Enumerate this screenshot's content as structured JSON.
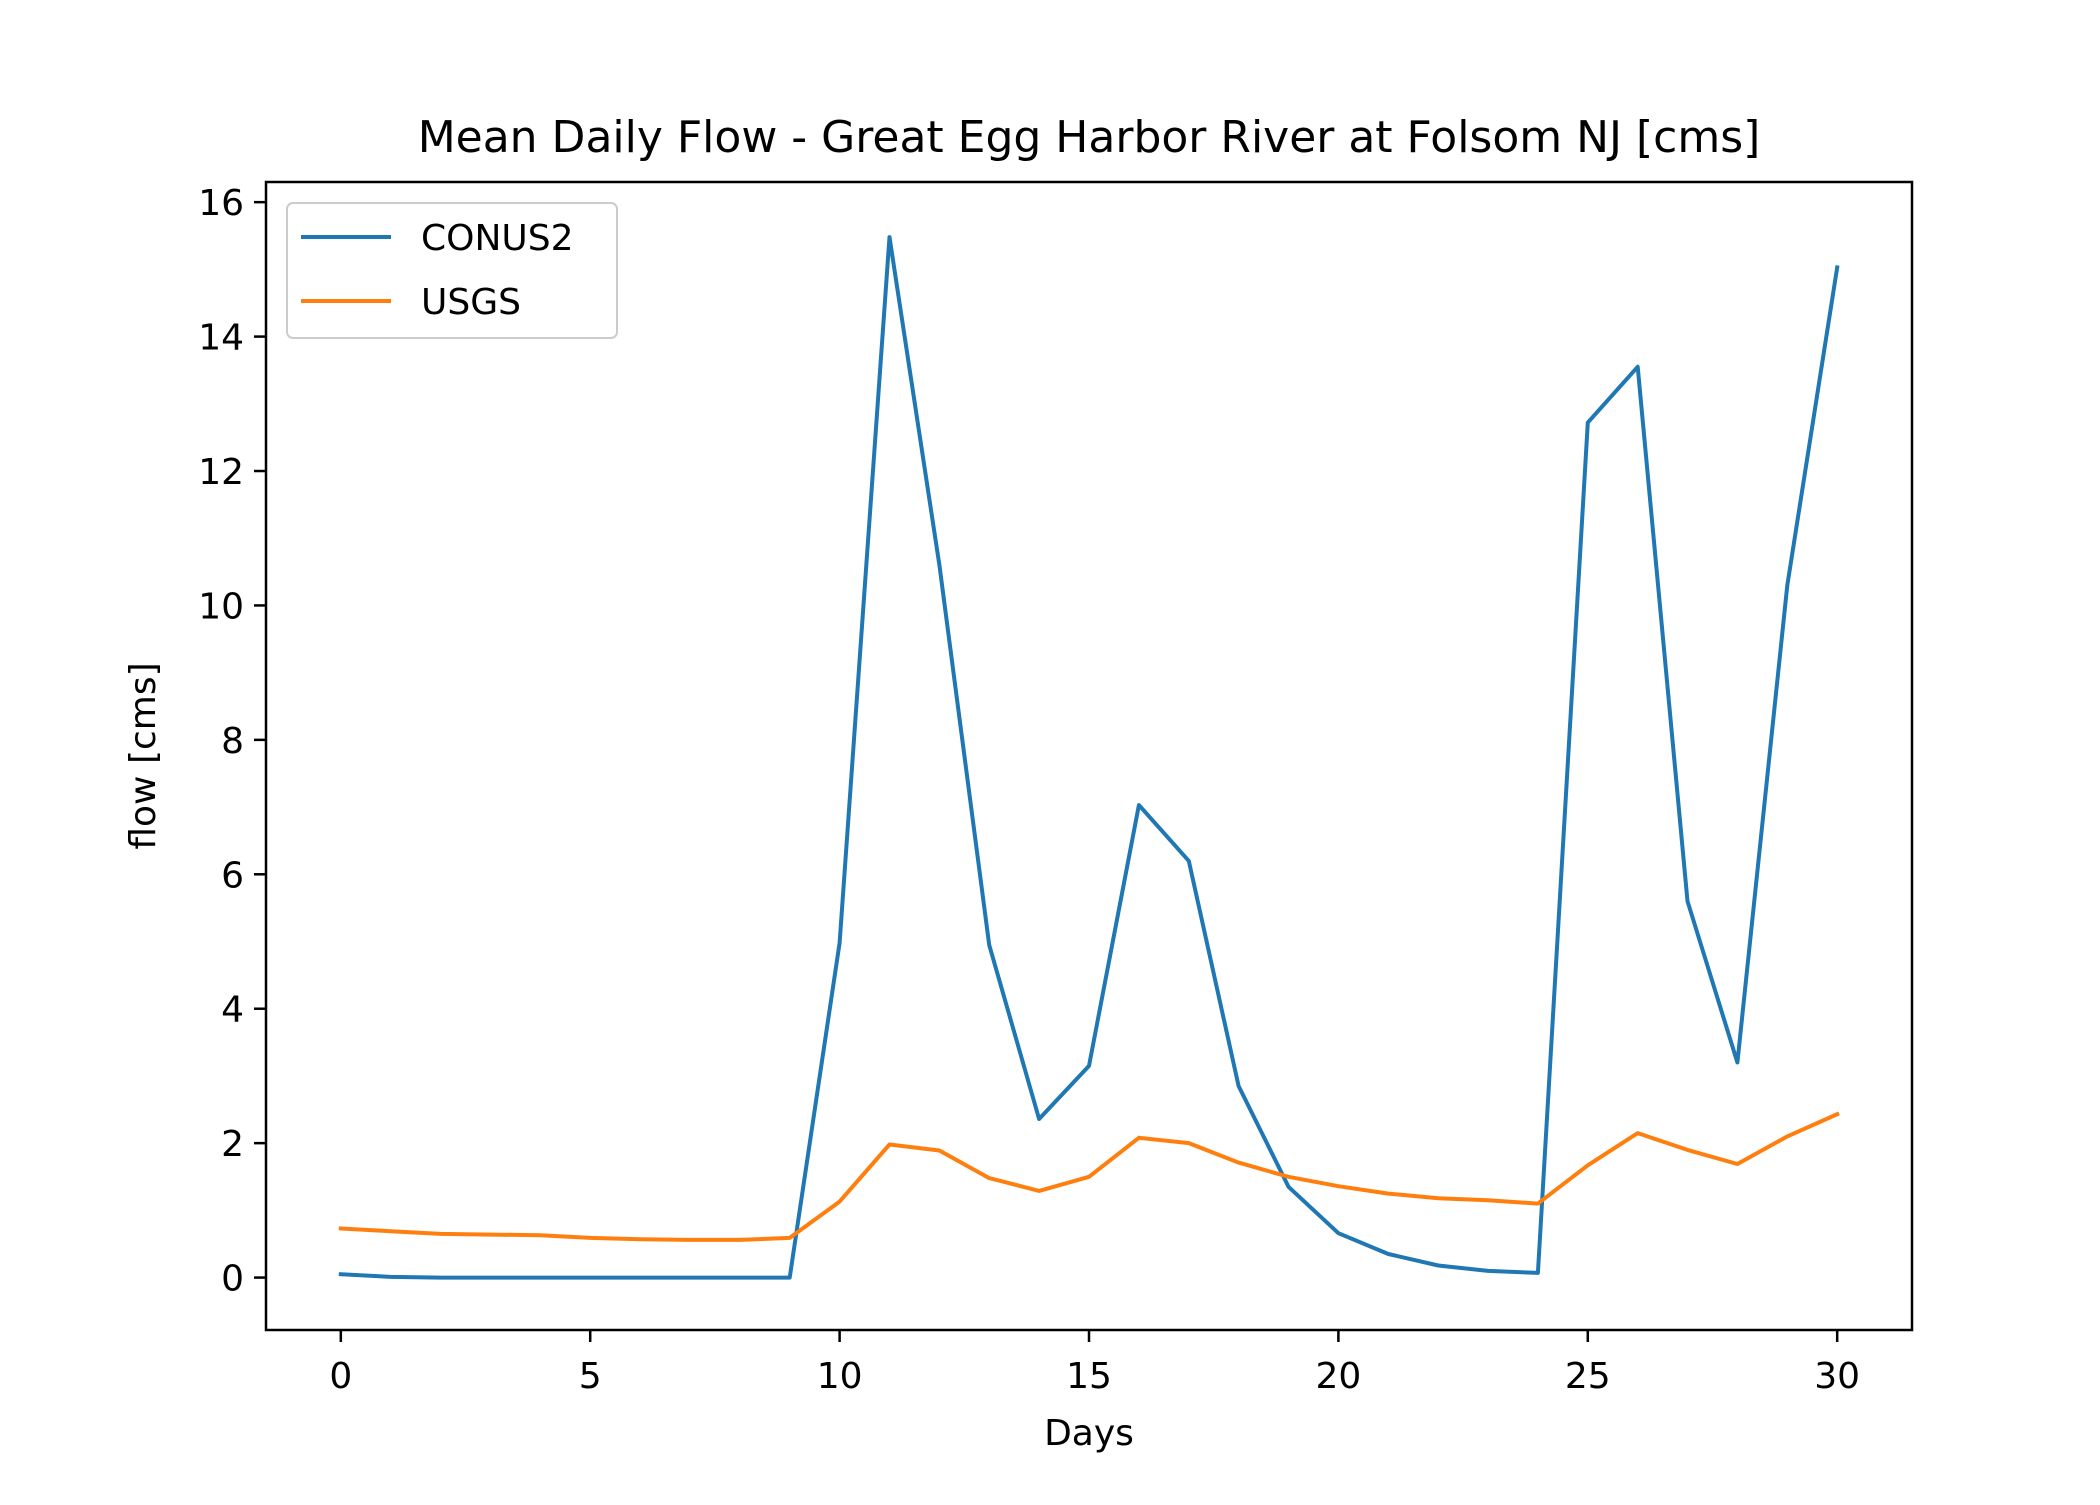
{
  "chart_data": {
    "type": "line",
    "title": "Mean Daily Flow - Great Egg Harbor River at Folsom NJ [cms]",
    "xlabel": "Days",
    "ylabel": "flow [cms]",
    "xlim": [
      -1.5,
      31.5
    ],
    "ylim": [
      -0.78,
      16.3
    ],
    "xticks": [
      0,
      5,
      10,
      15,
      20,
      25,
      30
    ],
    "yticks": [
      0,
      2,
      4,
      6,
      8,
      10,
      12,
      14,
      16
    ],
    "grid": false,
    "legend_position": "upper left",
    "x": [
      0,
      1,
      2,
      3,
      4,
      5,
      6,
      7,
      8,
      9,
      10,
      11,
      12,
      13,
      14,
      15,
      16,
      17,
      18,
      19,
      20,
      21,
      22,
      23,
      24,
      25,
      26,
      27,
      28,
      29,
      30
    ],
    "series": [
      {
        "name": "CONUS2",
        "color": "#1f77b4",
        "values": [
          0.05,
          0.01,
          0.0,
          0.0,
          0.0,
          0.0,
          0.0,
          0.0,
          0.0,
          0.0,
          4.98,
          15.48,
          10.6,
          4.95,
          2.36,
          3.15,
          7.03,
          6.2,
          2.85,
          1.35,
          0.66,
          0.35,
          0.18,
          0.1,
          0.07,
          12.72,
          13.55,
          5.6,
          3.2,
          10.3,
          15.03
        ]
      },
      {
        "name": "USGS",
        "color": "#ff7f0e",
        "values": [
          0.73,
          0.69,
          0.65,
          0.64,
          0.63,
          0.59,
          0.57,
          0.56,
          0.56,
          0.59,
          1.13,
          1.98,
          1.89,
          1.48,
          1.29,
          1.5,
          2.08,
          2.0,
          1.71,
          1.5,
          1.36,
          1.25,
          1.18,
          1.15,
          1.1,
          1.67,
          2.15,
          1.9,
          1.69,
          2.1,
          2.43
        ]
      }
    ]
  }
}
